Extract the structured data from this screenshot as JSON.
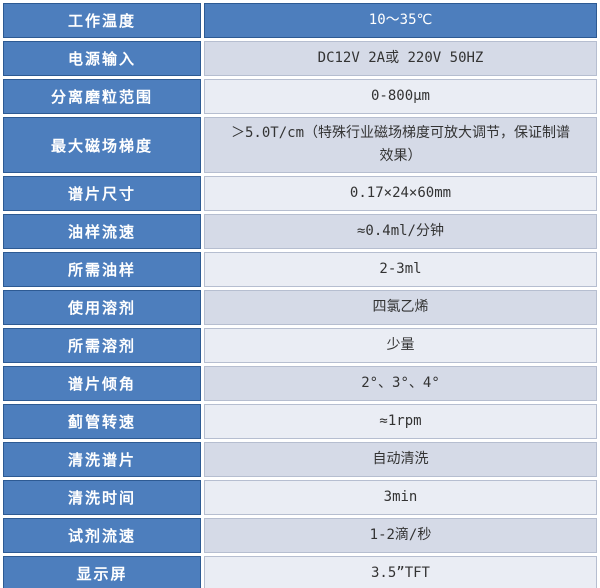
{
  "colors": {
    "label_blue": "#4d7ebd",
    "label_border": "#2d5a93",
    "band_dark": "#d5dae7",
    "band_light": "#eaedf4",
    "value_border": "#b6bed0",
    "value_text": "#333333",
    "label_text": "#ffffff"
  },
  "table": {
    "rows": [
      {
        "label": "工作温度",
        "value": "10～35℃"
      },
      {
        "label": "电源输入",
        "value": "DC12V 2A或 220V 50HZ"
      },
      {
        "label": "分离磨粒范围",
        "value": "0-800μm"
      },
      {
        "label": "最大磁场梯度",
        "value": "＞5.0T/cm（特殊行业磁场梯度可放大调节，保证制谱效果）"
      },
      {
        "label": "谱片尺寸",
        "value": "0.17×24×60mm"
      },
      {
        "label": "油样流速",
        "value": "≈0.4ml/分钟"
      },
      {
        "label": "所需油样",
        "value": "2-3ml"
      },
      {
        "label": "使用溶剂",
        "value": "四氯乙烯"
      },
      {
        "label": "所需溶剂",
        "value": "少量"
      },
      {
        "label": "谱片倾角",
        "value": "2°、3°、4°"
      },
      {
        "label": "蓟管转速",
        "value": "≈1rpm"
      },
      {
        "label": "清洗谱片",
        "value": "自动清洗"
      },
      {
        "label": "清洗时间",
        "value": "3min"
      },
      {
        "label": "试剂流速",
        "value": "1-2滴/秒"
      },
      {
        "label": "显示屏",
        "value": "3.5”TFT"
      }
    ]
  }
}
